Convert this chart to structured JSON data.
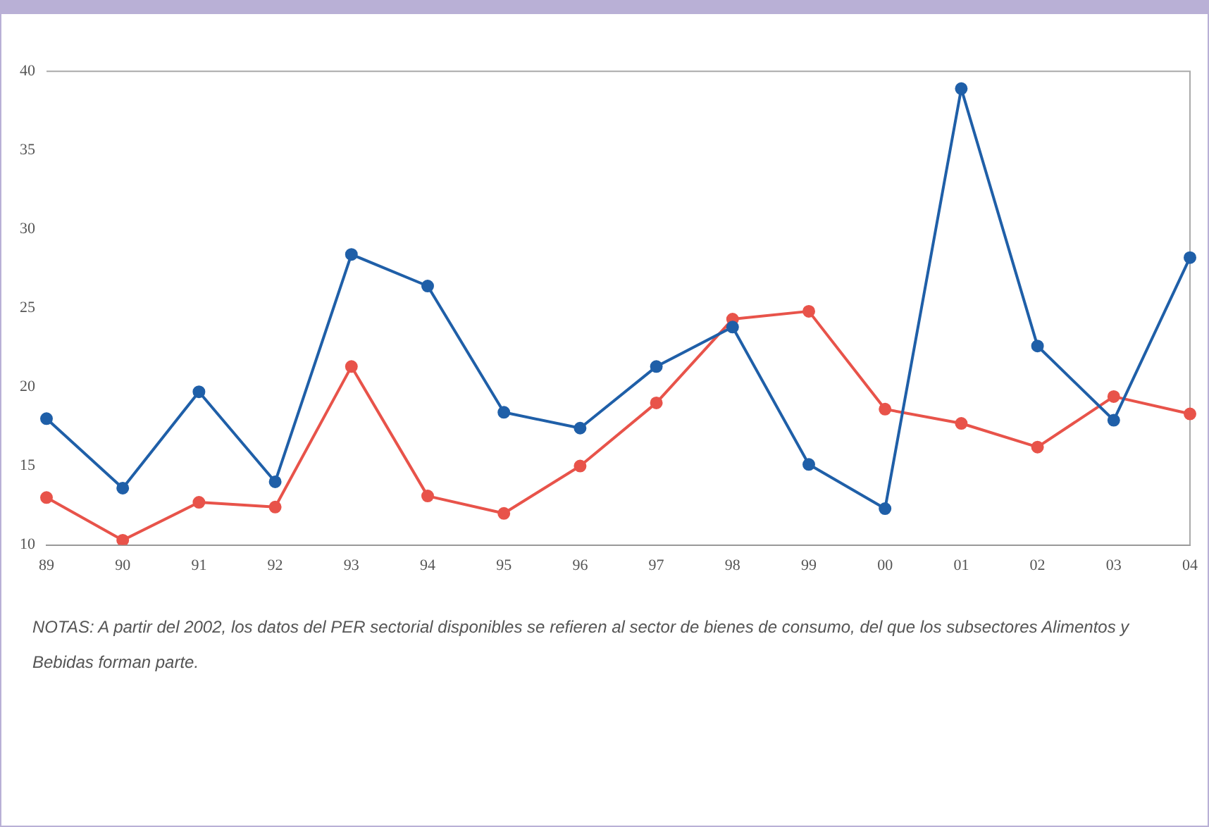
{
  "chart_data": {
    "type": "line",
    "categories": [
      "89",
      "90",
      "91",
      "92",
      "93",
      "94",
      "95",
      "96",
      "97",
      "98",
      "99",
      "00",
      "01",
      "02",
      "03",
      "04"
    ],
    "series": [
      {
        "color": "#1f5fa8",
        "values": [
          18.0,
          13.6,
          19.7,
          14.0,
          28.4,
          26.4,
          18.4,
          17.4,
          21.3,
          23.8,
          15.1,
          12.3,
          38.9,
          22.6,
          17.9,
          28.2
        ]
      },
      {
        "color": "#e8534a",
        "values": [
          13.0,
          10.3,
          12.7,
          12.4,
          21.3,
          13.1,
          12.0,
          15.0,
          19.0,
          24.3,
          24.8,
          18.6,
          17.7,
          16.2,
          19.4,
          18.3
        ]
      }
    ],
    "ylim": [
      10,
      40
    ],
    "yticks": [
      10,
      15,
      20,
      25,
      30,
      35,
      40
    ],
    "grid": false,
    "legend": false,
    "marker": "circle",
    "line_style": "solid",
    "annotations": [
      "NOTAS: A partir del 2002, los datos del PER sectorial disponibles se refieren al sector de bienes de consumo, del que los subsectores Alimentos y Bebidas forman parte."
    ]
  }
}
